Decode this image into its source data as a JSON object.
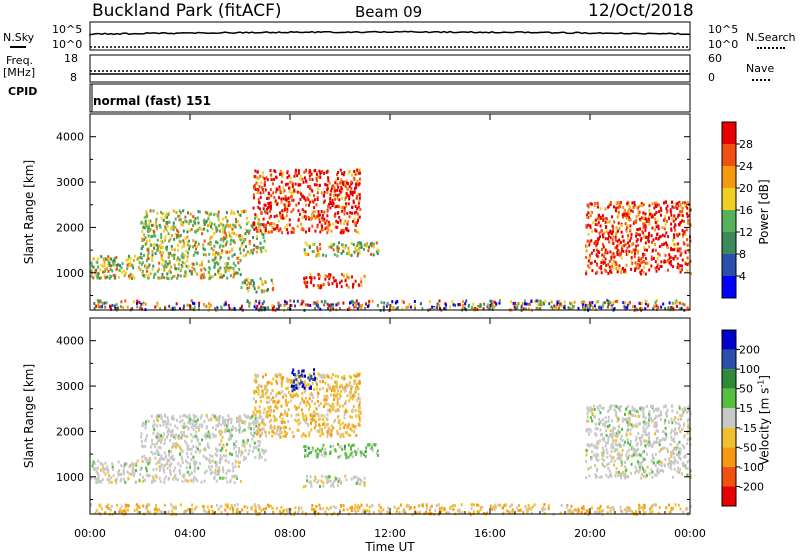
{
  "header": {
    "station": "Buckland Park (fitACF)",
    "beam": "Beam 09",
    "date": "12/Oct/2018"
  },
  "noise_panel": {
    "left_label": "N.Sky",
    "right_label": "N.Search",
    "left_ticks": [
      "10^5",
      "10^0"
    ],
    "right_ticks": [
      "10^5",
      "10^0"
    ]
  },
  "freq_panel": {
    "left_label_line1": "Freq.",
    "left_label_line2": "[MHz]",
    "right_label": "Nave",
    "left_ticks": [
      "18",
      "8"
    ],
    "right_ticks": [
      "60",
      "0"
    ]
  },
  "cpid": {
    "label": "CPID",
    "mode": "normal (fast) 151"
  },
  "colors": {
    "power_scale": [
      "#0000ff",
      "#2a4fa8",
      "#3a8a5a",
      "#55b25a",
      "#f0d020",
      "#f59a10",
      "#f05010",
      "#e80000"
    ],
    "velocity_scale": [
      "#e80000",
      "#f05010",
      "#f59a10",
      "#f0c030",
      "#c8c8c8",
      "#55c040",
      "#2e8a3a",
      "#2a4fa8",
      "#0000cc"
    ]
  },
  "chart_data": [
    {
      "type": "heatmap",
      "parameter": "Power",
      "xlabel": "",
      "ylabel": "Slant Range [km]",
      "colorbar_label": "Power [dB]",
      "colorbar_ticks": [
        "28",
        "24",
        "20",
        "16",
        "12",
        "8",
        "4"
      ],
      "x_ticks": [
        "00:00",
        "04:00",
        "08:00",
        "12:00",
        "16:00",
        "20:00",
        "00:00"
      ],
      "y_ticks": [
        "4000",
        "3000",
        "2000",
        "1000"
      ],
      "xlim_hours": [
        0,
        24
      ],
      "ylim_km": [
        180,
        4500
      ],
      "echo_regions": [
        {
          "t0": 0.0,
          "t1": 24.0,
          "r0": 200,
          "r1": 420,
          "level": "mixed-low"
        },
        {
          "t0": 0.0,
          "t1": 6.0,
          "r0": 900,
          "r1": 1400,
          "level": "medium"
        },
        {
          "t0": 2.0,
          "t1": 7.0,
          "r0": 1400,
          "r1": 2400,
          "level": "medium"
        },
        {
          "t0": 6.5,
          "t1": 10.8,
          "r0": 1900,
          "r1": 3300,
          "level": "high"
        },
        {
          "t0": 8.5,
          "t1": 11.5,
          "r0": 1400,
          "r1": 1700,
          "level": "medium"
        },
        {
          "t0": 8.5,
          "t1": 11.0,
          "r0": 700,
          "r1": 1000,
          "level": "high"
        },
        {
          "t0": 6.0,
          "t1": 7.3,
          "r0": 600,
          "r1": 900,
          "level": "medium"
        },
        {
          "t0": 19.8,
          "t1": 24.0,
          "r0": 1000,
          "r1": 2600,
          "level": "high"
        }
      ]
    },
    {
      "type": "heatmap",
      "parameter": "Velocity",
      "xlabel": "Time UT",
      "ylabel": "Slant Range [km]",
      "colorbar_label": "Velocity [m s^-1]",
      "colorbar_ticks": [
        "200",
        "100",
        "50",
        "15",
        "-15",
        "-50",
        "-100",
        "-200"
      ],
      "x_ticks": [
        "00:00",
        "04:00",
        "08:00",
        "12:00",
        "16:00",
        "20:00",
        "00:00"
      ],
      "y_ticks": [
        "4000",
        "3000",
        "2000",
        "1000"
      ],
      "xlim_hours": [
        0,
        24
      ],
      "ylim_km": [
        180,
        4500
      ],
      "echo_regions": [
        {
          "t0": 0.0,
          "t1": 24.0,
          "r0": 200,
          "r1": 420,
          "level": "negative-small"
        },
        {
          "t0": 0.0,
          "t1": 6.0,
          "r0": 900,
          "r1": 1400,
          "level": "near-zero"
        },
        {
          "t0": 2.0,
          "t1": 7.0,
          "r0": 1400,
          "r1": 2400,
          "level": "near-zero"
        },
        {
          "t0": 6.5,
          "t1": 10.8,
          "r0": 1900,
          "r1": 3300,
          "level": "negative-small"
        },
        {
          "t0": 8.5,
          "t1": 11.5,
          "r0": 1450,
          "r1": 1750,
          "level": "positive"
        },
        {
          "t0": 8.5,
          "t1": 11.0,
          "r0": 800,
          "r1": 1050,
          "level": "near-zero"
        },
        {
          "t0": 8.0,
          "t1": 9.0,
          "r0": 2900,
          "r1": 3400,
          "level": "strong-positive"
        },
        {
          "t0": 19.8,
          "t1": 24.0,
          "r0": 1000,
          "r1": 2600,
          "level": "near-zero"
        }
      ]
    }
  ]
}
